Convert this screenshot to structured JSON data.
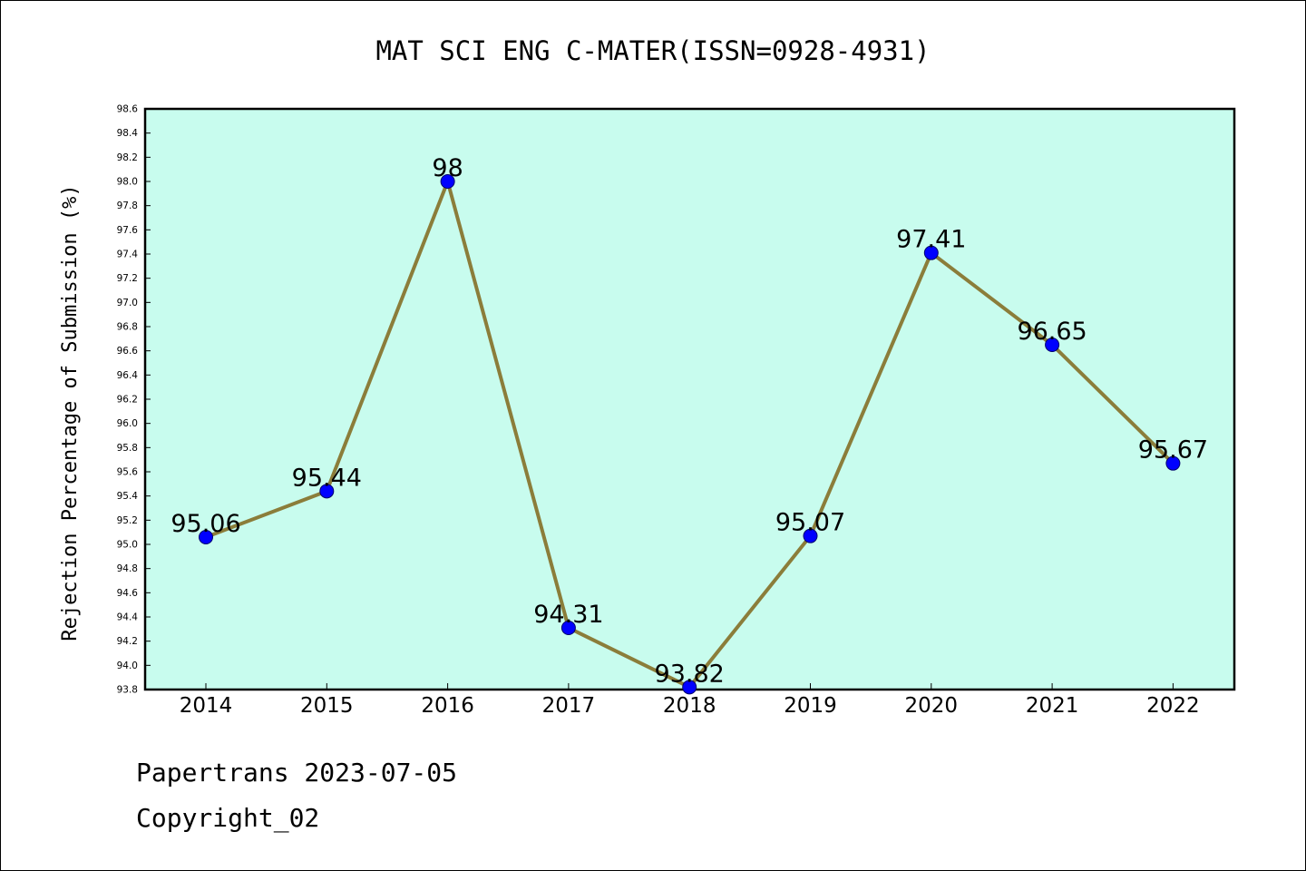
{
  "chart_data": {
    "type": "line",
    "title": "MAT SCI ENG C-MATER(ISSN=0928-4931)",
    "ylabel": "Rejection Percentage of Submission (%)",
    "xlabel": "",
    "categories": [
      "2014",
      "2015",
      "2016",
      "2017",
      "2018",
      "2019",
      "2020",
      "2021",
      "2022"
    ],
    "series": [
      {
        "values": [
          95.06,
          95.44,
          98,
          94.31,
          93.82,
          95.07,
          97.41,
          96.65,
          95.67
        ],
        "data_labels": [
          "95.06",
          "95.44",
          "98",
          "94.31",
          "93.82",
          "95.07",
          "97.41",
          "96.65",
          "95.67"
        ]
      }
    ],
    "ylim": [
      93.8,
      98.6
    ],
    "yticks": [
      "93.8",
      "94.0",
      "94.2",
      "94.4",
      "94.6",
      "94.8",
      "95.0",
      "95.2",
      "95.4",
      "95.6",
      "95.8",
      "96.0",
      "96.2",
      "96.4",
      "96.6",
      "96.8",
      "97.0",
      "97.2",
      "97.4",
      "97.6",
      "97.8",
      "98.0",
      "98.2",
      "98.4",
      "98.6"
    ],
    "grid": false,
    "colors": {
      "plot_background": "#c8fcee",
      "line": "#8b7d3a",
      "marker": "#0000ff"
    }
  },
  "footer": {
    "line1": "Papertrans 2023-07-05",
    "line2": "Copyright_02"
  }
}
